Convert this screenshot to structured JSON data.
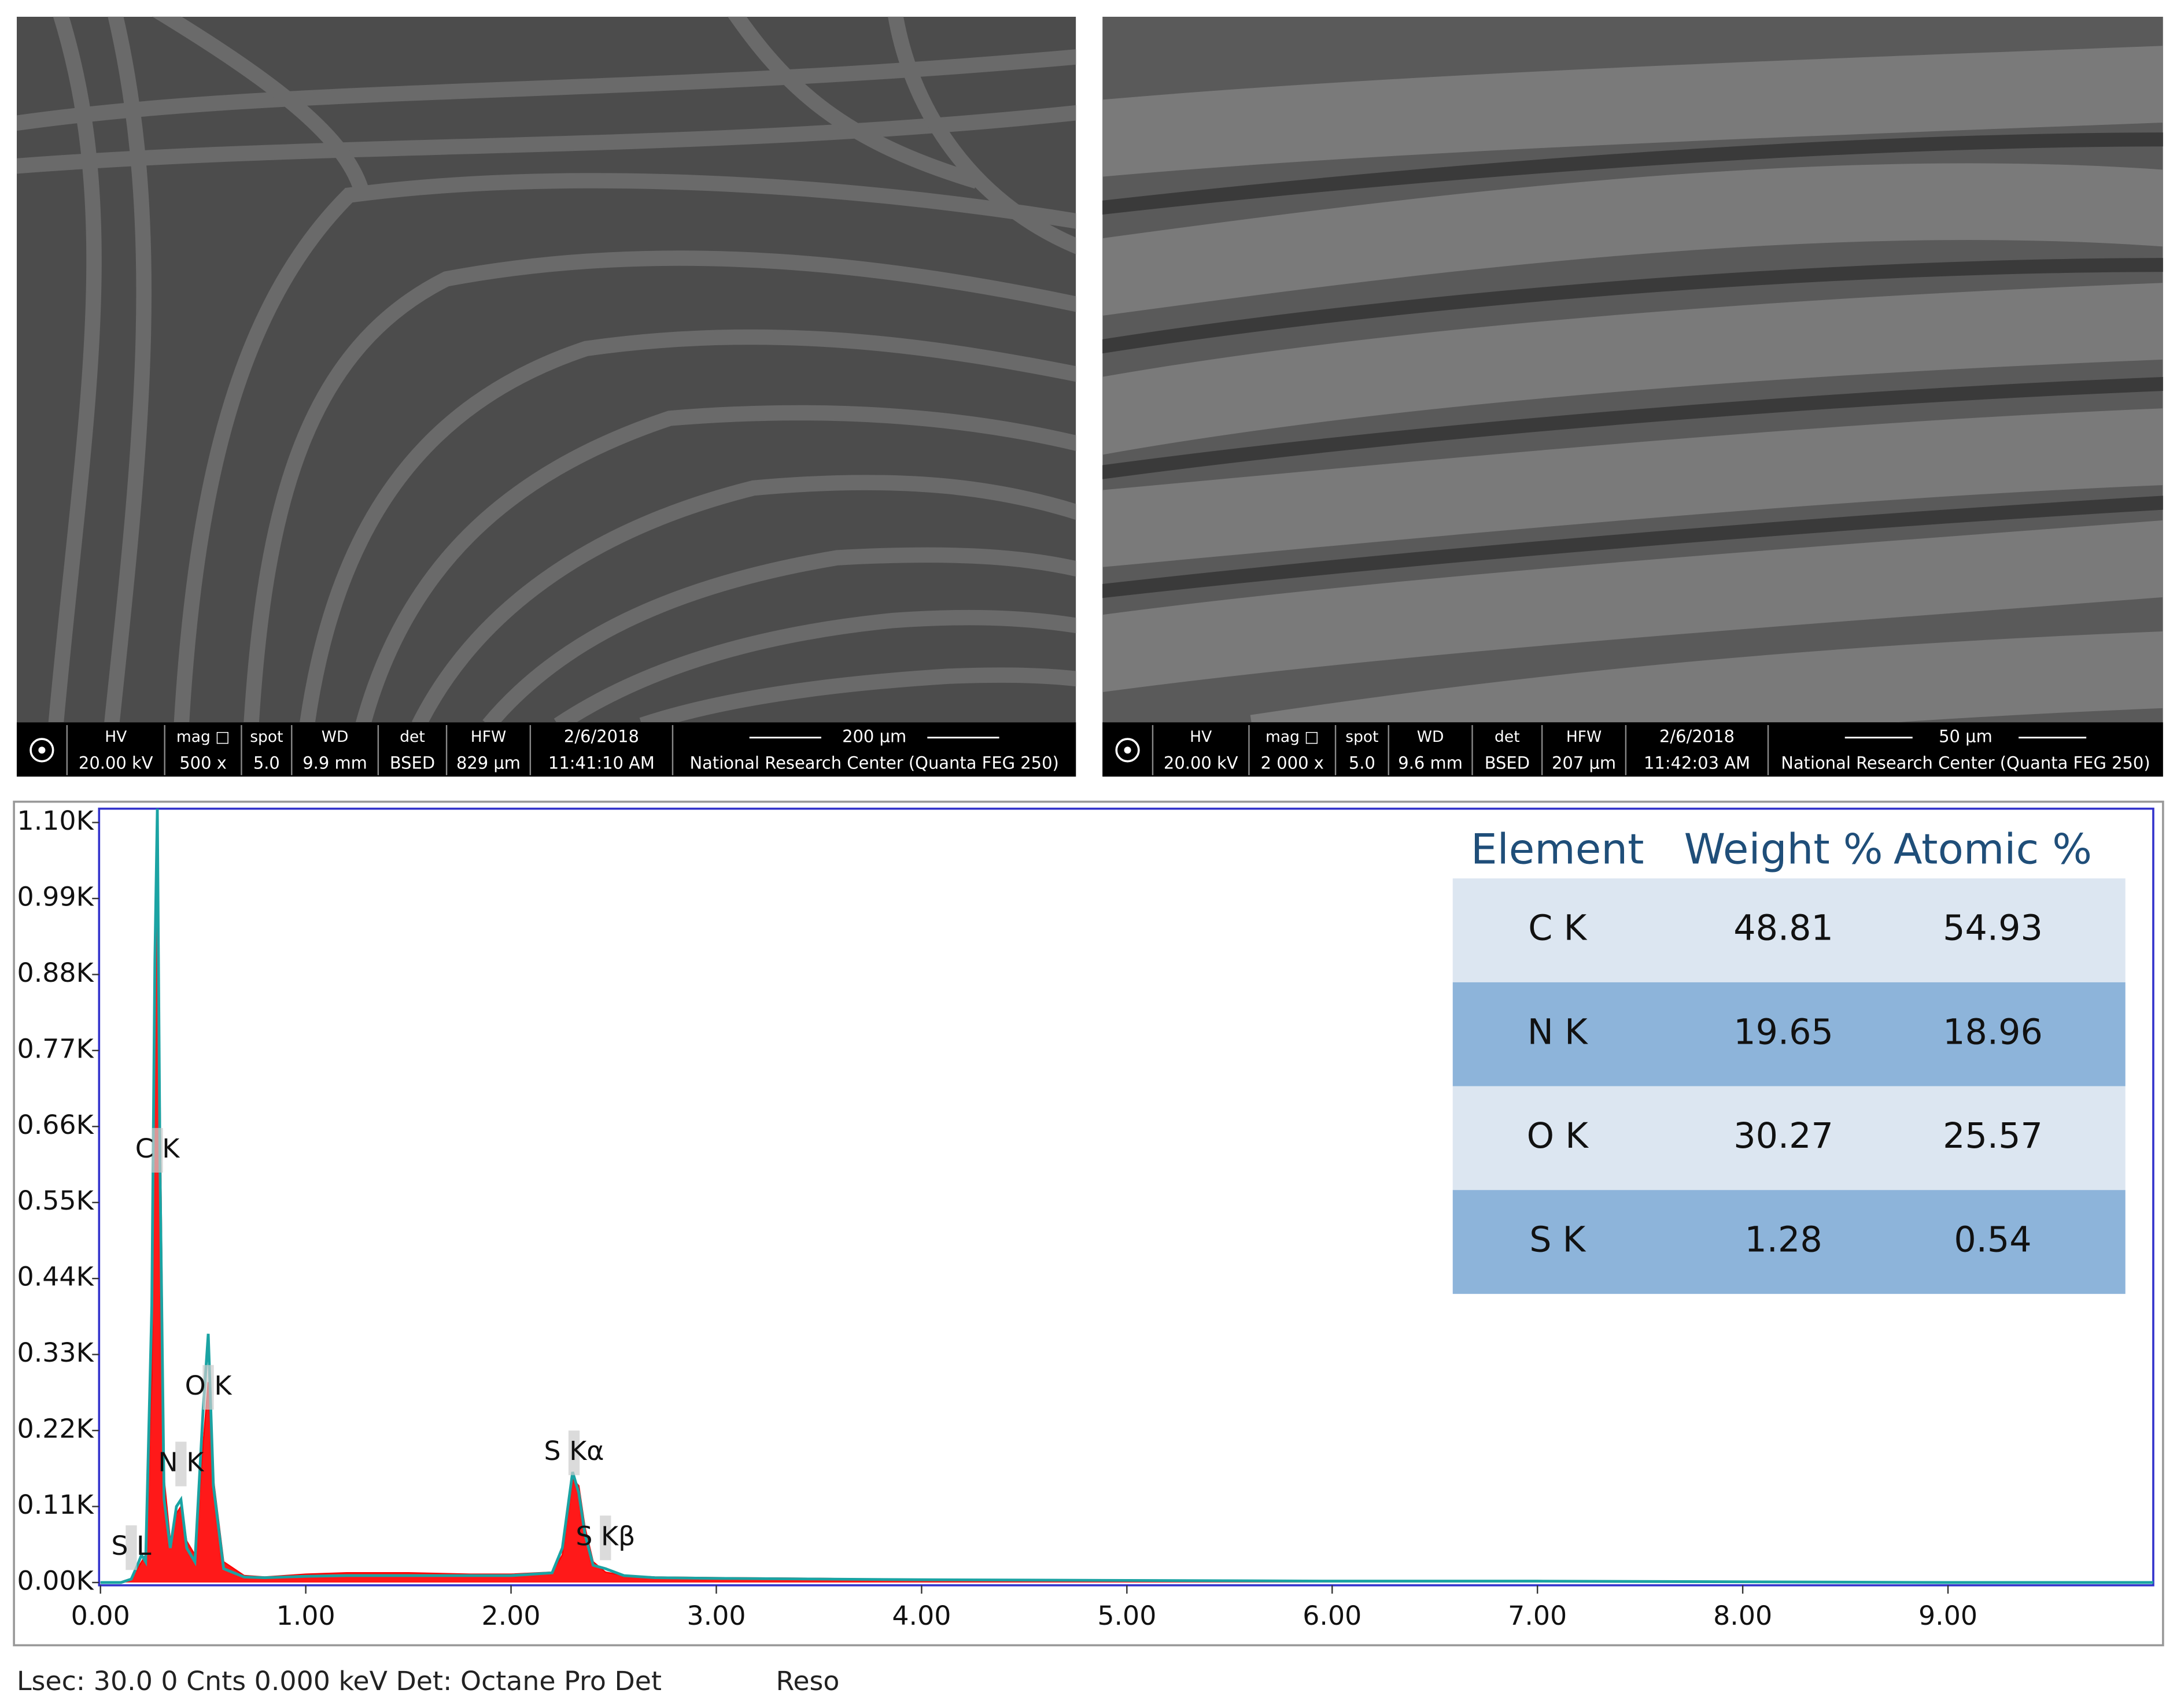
{
  "sem_images": [
    {
      "hv_label": "HV",
      "hv": "20.00 kV",
      "mag_label": "mag □",
      "mag": "500 x",
      "spot_label": "spot",
      "spot": "5.0",
      "wd_label": "WD",
      "wd": "9.9 mm",
      "det_label": "det",
      "det": "BSED",
      "hfw_label": "HFW",
      "hfw": "829 μm",
      "date": "2/6/2018",
      "time": "11:41:10 AM",
      "scale_bar": "200 μm",
      "institution": "National Research Center (Quanta FEG 250)"
    },
    {
      "hv_label": "HV",
      "hv": "20.00 kV",
      "mag_label": "mag □",
      "mag": "2 000 x",
      "spot_label": "spot",
      "spot": "5.0",
      "wd_label": "WD",
      "wd": "9.6 mm",
      "det_label": "det",
      "det": "BSED",
      "hfw_label": "HFW",
      "hfw": "207 μm",
      "date": "2/6/2018",
      "time": "11:42:03 AM",
      "scale_bar": "50 μm",
      "institution": "National Research Center (Quanta FEG 250)"
    }
  ],
  "chart_data": {
    "type": "line",
    "x": [
      0,
      0.1,
      0.15,
      0.18,
      0.2,
      0.22,
      0.25,
      0.265,
      0.277,
      0.29,
      0.31,
      0.34,
      0.37,
      0.392,
      0.42,
      0.46,
      0.5,
      0.525,
      0.55,
      0.6,
      0.7,
      0.8,
      1.0,
      1.2,
      1.5,
      1.8,
      2.0,
      2.2,
      2.25,
      2.3,
      2.33,
      2.36,
      2.4,
      2.46,
      2.55,
      2.7,
      3.0,
      3.5,
      4.0,
      5.0,
      6.0,
      7.0,
      8.0,
      9.0,
      10.0
    ],
    "series": [
      {
        "color": "#ff0000",
        "fill": true,
        "values": [
          0,
          0,
          5,
          20,
          30,
          40,
          300,
          800,
          1080,
          700,
          150,
          60,
          100,
          110,
          60,
          40,
          200,
          290,
          150,
          30,
          10,
          8,
          12,
          14,
          14,
          12,
          12,
          15,
          40,
          150,
          140,
          80,
          30,
          15,
          10,
          8,
          7,
          6,
          4,
          3,
          2,
          2,
          1,
          1,
          0
        ]
      },
      {
        "color": "#1aa3a3",
        "fill": false,
        "values": [
          0,
          0,
          5,
          25,
          40,
          30,
          400,
          900,
          1120,
          600,
          120,
          50,
          110,
          120,
          50,
          30,
          250,
          360,
          140,
          20,
          8,
          7,
          9,
          10,
          10,
          10,
          10,
          14,
          50,
          160,
          130,
          70,
          25,
          20,
          10,
          7,
          6,
          5,
          4,
          3,
          2,
          2,
          1,
          0,
          0
        ]
      }
    ],
    "xlim": [
      0,
      10
    ],
    "ylim": [
      0,
      1120
    ],
    "xticks": [
      {
        "value": 0,
        "label": "0.00"
      },
      {
        "value": 1,
        "label": "1.00"
      },
      {
        "value": 2,
        "label": "2.00"
      },
      {
        "value": 3,
        "label": "3.00"
      },
      {
        "value": 4,
        "label": "4.00"
      },
      {
        "value": 5,
        "label": "5.00"
      },
      {
        "value": 6,
        "label": "6.00"
      },
      {
        "value": 7,
        "label": "7.00"
      },
      {
        "value": 8,
        "label": "8.00"
      },
      {
        "value": 9,
        "label": "9.00"
      }
    ],
    "yticks": [
      {
        "value": 0,
        "label": "0.00K"
      },
      {
        "value": 110,
        "label": "0.11K"
      },
      {
        "value": 220,
        "label": "0.22K"
      },
      {
        "value": 330,
        "label": "0.33K"
      },
      {
        "value": 440,
        "label": "0.44K"
      },
      {
        "value": 550,
        "label": "0.55K"
      },
      {
        "value": 660,
        "label": "0.66K"
      },
      {
        "value": 770,
        "label": "0.77K"
      },
      {
        "value": 880,
        "label": "0.88K"
      },
      {
        "value": 990,
        "label": "0.99K"
      },
      {
        "value": 1100,
        "label": "1.10K"
      }
    ],
    "annotations": [
      {
        "label": "S L",
        "x": 0.15
      },
      {
        "label": "C K",
        "x": 0.277
      },
      {
        "label": "N K",
        "x": 0.392
      },
      {
        "label": "O K",
        "x": 0.525
      },
      {
        "label": "S Kα",
        "x": 2.307
      },
      {
        "label": "S Kβ",
        "x": 2.46
      }
    ]
  },
  "eds_table": {
    "headers": [
      "Element",
      "Weight %",
      "Atomic %"
    ],
    "rows": [
      [
        "C K",
        48.81,
        54.93
      ],
      [
        "N K",
        19.65,
        18.96
      ],
      [
        "O K",
        30.27,
        25.57
      ],
      [
        "S K",
        1.28,
        0.54
      ]
    ]
  },
  "footer": {
    "status": "Lsec: 30.0 0 Cnts  0.000 keV Det: Octane Pro Det",
    "reso": "Reso"
  }
}
